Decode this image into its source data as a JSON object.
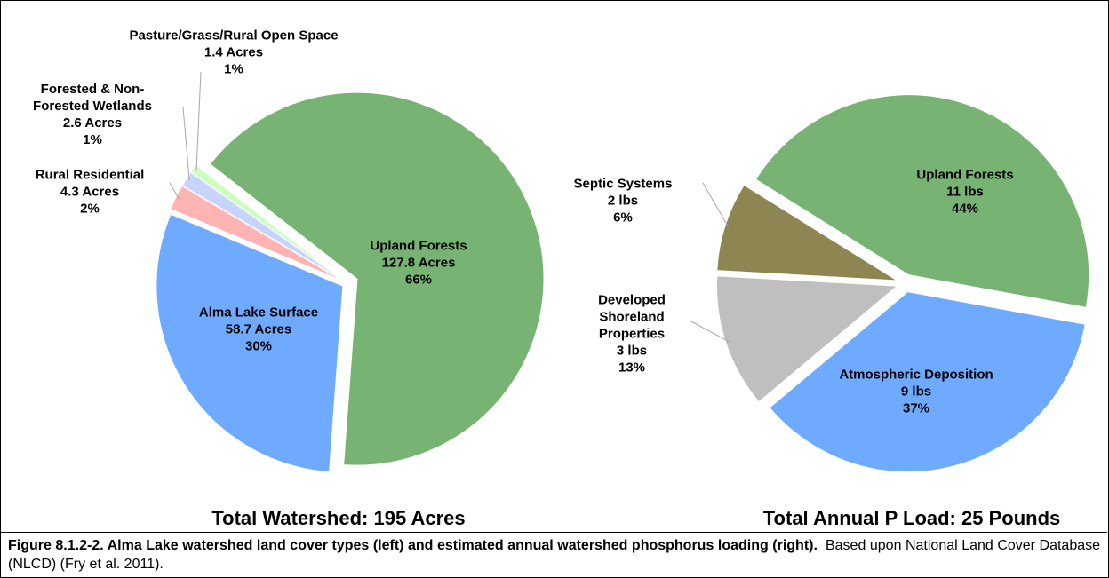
{
  "chart_data": [
    {
      "type": "pie",
      "title": "Total Watershed: 195 Acres",
      "categories": [
        "Upland Forests",
        "Alma Lake Surface",
        "Rural Residential",
        "Forested & Non-Forested Wetlands",
        "Pasture/Grass/Rural Open Space"
      ],
      "values": [
        127.8,
        58.7,
        4.3,
        2.6,
        1.4
      ],
      "value_labels": [
        "127.8 Acres",
        "58.7 Acres",
        "4.3 Acres",
        "2.6 Acres",
        "1.4 Acres"
      ],
      "percent_labels": [
        "66%",
        "30%",
        "2%",
        "1%",
        "1%"
      ],
      "colors": [
        "#77b473",
        "#6eaaff",
        "#ffb3b3",
        "#c6d4ff",
        "#ccffbb"
      ]
    },
    {
      "type": "pie",
      "title": "Total Annual P Load: 25 Pounds",
      "categories": [
        "Upland Forests",
        "Atmospheric Deposition",
        "Developed Shoreland Properties",
        "Septic Systems"
      ],
      "values": [
        11,
        9,
        3,
        2
      ],
      "value_labels": [
        "11 lbs",
        "9 lbs",
        "3 lbs",
        "2 lbs"
      ],
      "percent_labels": [
        "44%",
        "37%",
        "13%",
        "6%"
      ],
      "colors": [
        "#77b473",
        "#6eaaff",
        "#bfbfbf",
        "#8e8652"
      ]
    }
  ],
  "caption": {
    "bold": "Figure 8.1.2-2.  Alma Lake watershed land cover types (left) and estimated annual watershed phosphorus loading (right).",
    "text": "Based upon National Land Cover Database (NLCD) (Fry et al. 2011)."
  }
}
